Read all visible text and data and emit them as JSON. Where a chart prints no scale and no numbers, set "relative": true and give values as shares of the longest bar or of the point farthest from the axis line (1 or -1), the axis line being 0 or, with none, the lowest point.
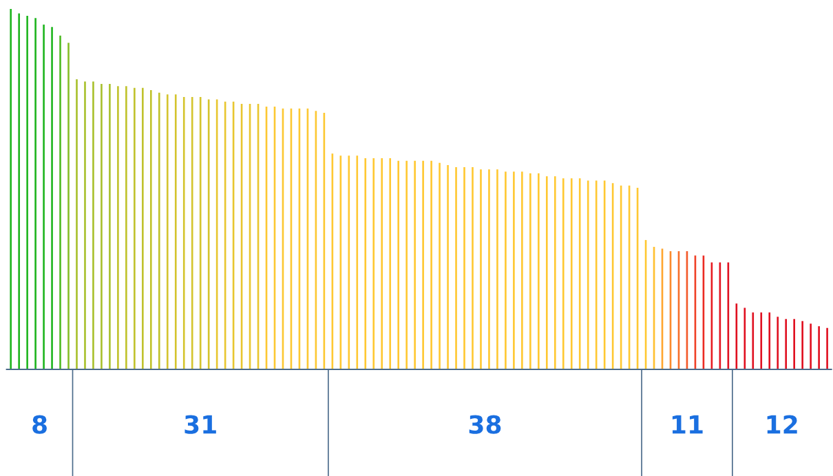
{
  "chart_data": {
    "type": "bar",
    "relative": true,
    "categories": [
      null,
      null,
      null,
      null,
      null,
      null,
      null,
      null,
      null,
      null,
      null,
      null,
      null,
      null,
      null,
      null,
      null,
      null,
      null,
      null,
      null,
      null,
      null,
      null,
      null,
      null,
      null,
      null,
      null,
      null,
      null,
      null,
      null,
      null,
      null,
      null,
      null,
      null,
      null,
      null,
      null,
      null,
      null,
      null,
      null,
      null,
      null,
      null,
      null,
      null,
      null,
      null,
      null,
      null,
      null,
      null,
      null,
      null,
      null,
      null,
      null,
      null,
      null,
      null,
      null,
      null,
      null,
      null,
      null,
      null,
      null,
      null,
      null,
      null,
      null,
      null,
      null,
      null,
      null,
      null,
      null,
      null,
      null,
      null,
      null,
      null,
      null,
      null,
      null,
      null,
      null,
      null,
      null,
      null,
      null,
      null,
      null,
      null,
      null,
      null
    ],
    "values": [
      1,
      0.988,
      0.981,
      0.975,
      0.957,
      0.95,
      0.926,
      0.906,
      0.805,
      0.799,
      0.799,
      0.792,
      0.792,
      0.786,
      0.786,
      0.781,
      0.781,
      0.775,
      0.768,
      0.763,
      0.763,
      0.756,
      0.756,
      0.756,
      0.749,
      0.749,
      0.743,
      0.743,
      0.737,
      0.737,
      0.737,
      0.729,
      0.729,
      0.724,
      0.724,
      0.724,
      0.724,
      0.717,
      0.712,
      0.599,
      0.593,
      0.593,
      0.593,
      0.586,
      0.586,
      0.586,
      0.586,
      0.579,
      0.579,
      0.579,
      0.579,
      0.579,
      0.573,
      0.567,
      0.561,
      0.561,
      0.561,
      0.555,
      0.555,
      0.555,
      0.549,
      0.549,
      0.549,
      0.544,
      0.544,
      0.536,
      0.536,
      0.53,
      0.53,
      0.53,
      0.524,
      0.524,
      0.524,
      0.517,
      0.51,
      0.51,
      0.504,
      0.359,
      0.34,
      0.335,
      0.328,
      0.328,
      0.328,
      0.316,
      0.316,
      0.297,
      0.297,
      0.297,
      0.183,
      0.171,
      0.158,
      0.158,
      0.158,
      0.146,
      0.14,
      0.14,
      0.134,
      0.127,
      0.12,
      0.115
    ],
    "colors": [
      "#1fb51f",
      "#1fb51f",
      "#1fb51f",
      "#1fb51f",
      "#1fb51f",
      "#1fb51f",
      "#50bb25",
      "#86bf2a",
      "#a8c02c",
      "#a8c02c",
      "#a8c02c",
      "#a8c02c",
      "#a8c02c",
      "#c0c22c",
      "#c0c22c",
      "#c0c22c",
      "#c0c22c",
      "#c0c22c",
      "#c0c22c",
      "#d4c42e",
      "#d4c42e",
      "#d4c42e",
      "#d4c42e",
      "#d4c42e",
      "#d4c42e",
      "#e8c630",
      "#e8c630",
      "#e8c630",
      "#e8c630",
      "#e8c630",
      "#e8c630",
      "#fcc832",
      "#fcc832",
      "#fcc832",
      "#fcc832",
      "#fcc832",
      "#fcc832",
      "#fcc832",
      "#fcc832",
      "#ffc832",
      "#ffc832",
      "#ffc832",
      "#ffc832",
      "#ffc832",
      "#ffc832",
      "#ffc832",
      "#ffc832",
      "#ffc832",
      "#ffc832",
      "#ffc832",
      "#ffc832",
      "#ffc832",
      "#ffc832",
      "#ffc832",
      "#ffc832",
      "#ffc832",
      "#ffc832",
      "#ffc832",
      "#ffc832",
      "#ffc832",
      "#ffc832",
      "#ffc832",
      "#ffc832",
      "#ffc832",
      "#ffc832",
      "#ffc832",
      "#ffc832",
      "#ffc832",
      "#ffc832",
      "#ffc832",
      "#ffc832",
      "#ffc832",
      "#ffc832",
      "#ffc832",
      "#ffc832",
      "#ffc832",
      "#ffc832",
      "#ffc832",
      "#ffc030",
      "#ffa52e",
      "#fb8a2c",
      "#f7702a",
      "#f35828",
      "#ef4026",
      "#eb2c24",
      "#e71c22",
      "#e31420",
      "#e01020",
      "#e01020",
      "#e01020",
      "#e01020",
      "#e01020",
      "#e01020",
      "#e01020",
      "#e01020",
      "#e01020",
      "#e01020",
      "#e01020",
      "#e01020",
      "#e01020"
    ],
    "annotations": [
      "8",
      "31",
      "38",
      "11",
      "12"
    ]
  }
}
